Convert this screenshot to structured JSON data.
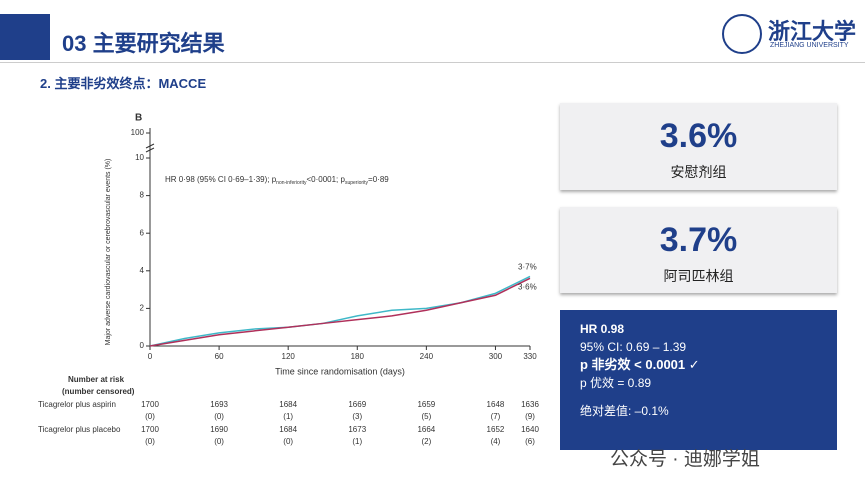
{
  "header": {
    "number": "03",
    "title": "主要研究结果",
    "logo_cn": "浙江大学",
    "logo_en": "ZHEJIANG UNIVERSITY"
  },
  "subtitle": "2. 主要非劣效终点：MACCE",
  "chart_data": {
    "type": "line",
    "panel": "B",
    "y_label": "Major adverse cardiovascular or cerebrovascular events (%)",
    "x_label": "Time since randomisation (days)",
    "annotation": [
      "HR 0·98 (95% CI 0·69–1·39); p",
      "non-inferiority",
      "<0·0001; p",
      "superiority",
      "=0·89"
    ],
    "x": [
      0,
      30,
      60,
      90,
      120,
      150,
      180,
      210,
      240,
      270,
      300,
      330
    ],
    "series": [
      {
        "name": "Ticagrelor plus aspirin",
        "color": "#3fb8c8",
        "values": [
          0,
          0.4,
          0.7,
          0.9,
          1.0,
          1.2,
          1.6,
          1.9,
          2.0,
          2.3,
          2.8,
          3.7
        ],
        "end_label": "3·7%"
      },
      {
        "name": "Ticagrelor plus placebo",
        "color": "#b0305a",
        "values": [
          0,
          0.3,
          0.6,
          0.8,
          1.0,
          1.2,
          1.4,
          1.6,
          1.9,
          2.3,
          2.7,
          3.6
        ],
        "end_label": "3·6%"
      }
    ],
    "xlim": [
      0,
      330
    ],
    "xticks": [
      0,
      60,
      120,
      180,
      240,
      300,
      330
    ],
    "ylim": [
      0,
      10
    ],
    "yticks": [
      0,
      2,
      4,
      6,
      8,
      10
    ],
    "yticks_above_break": [
      100
    ]
  },
  "risk_table": {
    "title": "Number at risk",
    "subtitle": "(number censored)",
    "days": [
      0,
      60,
      120,
      180,
      240,
      300,
      330
    ],
    "rows": [
      {
        "name": "Ticagrelor plus aspirin",
        "at_risk": [
          1700,
          1693,
          1684,
          1669,
          1659,
          1648,
          1636
        ],
        "censored": [
          "(0)",
          "(0)",
          "(1)",
          "(3)",
          "(5)",
          "(7)",
          "(9)"
        ]
      },
      {
        "name": "Ticagrelor plus placebo",
        "at_risk": [
          1700,
          1690,
          1684,
          1673,
          1664,
          1652,
          1640
        ],
        "censored": [
          "(0)",
          "(0)",
          "(0)",
          "(1)",
          "(2)",
          "(4)",
          "(6)"
        ]
      }
    ]
  },
  "cards": [
    {
      "value": "3.6%",
      "label": "安慰剂组"
    },
    {
      "value": "3.7%",
      "label": "阿司匹林组"
    }
  ],
  "summary": {
    "hr": "HR 0.98",
    "ci": "95% CI: 0.69 – 1.39",
    "p_noninf": "p 非劣效 < 0.0001 ✓",
    "p_sup": "p 优效 = 0.89",
    "diff": "绝对差值: –0.1%"
  },
  "watermark": "公众号 · 迪娜学姐"
}
